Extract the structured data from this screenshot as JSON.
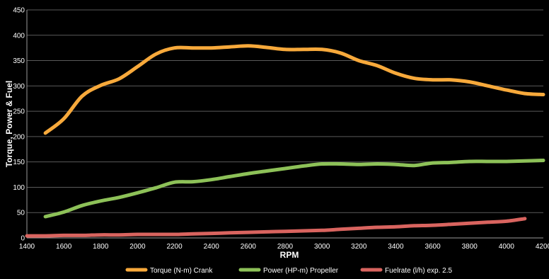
{
  "chart_data": {
    "type": "line",
    "xlabel": "RPM",
    "ylabel": "Torque, Power & Fuel",
    "xlim": [
      1400,
      4200
    ],
    "ylim": [
      0,
      450
    ],
    "x_ticks": [
      1400,
      1600,
      1800,
      2000,
      2200,
      2400,
      2600,
      2800,
      3000,
      3200,
      3400,
      3600,
      3800,
      4000,
      4200
    ],
    "y_ticks": [
      0,
      50,
      100,
      150,
      200,
      250,
      300,
      350,
      400,
      450
    ],
    "grid": "horizontal",
    "legend_position": "bottom",
    "series": [
      {
        "name": "Torque (N-m) Crank",
        "color": "#f7a93b",
        "points": [
          [
            1500,
            207
          ],
          [
            1600,
            235
          ],
          [
            1700,
            280
          ],
          [
            1800,
            301
          ],
          [
            1900,
            314
          ],
          [
            2000,
            338
          ],
          [
            2100,
            363
          ],
          [
            2200,
            375
          ],
          [
            2300,
            375
          ],
          [
            2400,
            375
          ],
          [
            2500,
            377
          ],
          [
            2600,
            379
          ],
          [
            2700,
            376
          ],
          [
            2800,
            372
          ],
          [
            2900,
            372
          ],
          [
            3000,
            372
          ],
          [
            3100,
            365
          ],
          [
            3200,
            350
          ],
          [
            3300,
            340
          ],
          [
            3400,
            325
          ],
          [
            3500,
            315
          ],
          [
            3600,
            312
          ],
          [
            3700,
            312
          ],
          [
            3800,
            308
          ],
          [
            3900,
            300
          ],
          [
            4000,
            292
          ],
          [
            4100,
            285
          ],
          [
            4200,
            283
          ]
        ]
      },
      {
        "name": "Power (HP-m) Propeller",
        "color": "#8dc158",
        "points": [
          [
            1500,
            42
          ],
          [
            1600,
            51
          ],
          [
            1700,
            64
          ],
          [
            1800,
            73
          ],
          [
            1900,
            80
          ],
          [
            2000,
            89
          ],
          [
            2100,
            99
          ],
          [
            2200,
            110
          ],
          [
            2300,
            111
          ],
          [
            2400,
            115
          ],
          [
            2500,
            121
          ],
          [
            2600,
            127
          ],
          [
            2700,
            132
          ],
          [
            2800,
            137
          ],
          [
            2900,
            142
          ],
          [
            3000,
            146
          ],
          [
            3100,
            146
          ],
          [
            3200,
            145
          ],
          [
            3300,
            146
          ],
          [
            3400,
            145
          ],
          [
            3500,
            143
          ],
          [
            3600,
            148
          ],
          [
            3700,
            149
          ],
          [
            3800,
            151
          ],
          [
            3900,
            151
          ],
          [
            4000,
            151
          ],
          [
            4100,
            152
          ],
          [
            4200,
            153
          ]
        ]
      },
      {
        "name": "Fuelrate (l/h) exp. 2.5",
        "color": "#d9645f",
        "points": [
          [
            1400,
            4
          ],
          [
            1500,
            4
          ],
          [
            1600,
            5
          ],
          [
            1700,
            5
          ],
          [
            1800,
            6
          ],
          [
            1900,
            6
          ],
          [
            2000,
            7
          ],
          [
            2100,
            7
          ],
          [
            2200,
            7
          ],
          [
            2300,
            8
          ],
          [
            2400,
            9
          ],
          [
            2500,
            10
          ],
          [
            2600,
            11
          ],
          [
            2700,
            12
          ],
          [
            2800,
            13
          ],
          [
            2900,
            14
          ],
          [
            3000,
            15
          ],
          [
            3100,
            17
          ],
          [
            3200,
            19
          ],
          [
            3300,
            21
          ],
          [
            3400,
            22
          ],
          [
            3500,
            24
          ],
          [
            3600,
            25
          ],
          [
            3700,
            27
          ],
          [
            3800,
            29
          ],
          [
            3900,
            31
          ],
          [
            4000,
            33
          ],
          [
            4100,
            38
          ]
        ]
      }
    ]
  }
}
